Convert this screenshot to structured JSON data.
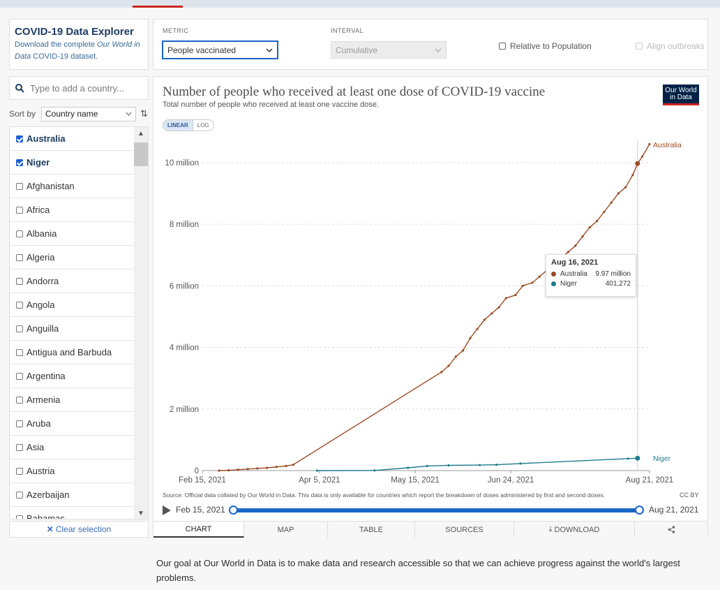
{
  "explorer": {
    "title": "COVID-19 Data Explorer",
    "desc_prefix": "Download the complete ",
    "desc_italic1": "Our World in",
    "desc_italic2": "Data",
    "desc_link": " COVID-19 dataset."
  },
  "search": {
    "placeholder": "Type to add a country..."
  },
  "sort": {
    "label": "Sort by",
    "value": "Country name"
  },
  "countries": [
    {
      "name": "Australia",
      "checked": true
    },
    {
      "name": "Niger",
      "checked": true
    },
    {
      "name": "Afghanistan",
      "checked": false
    },
    {
      "name": "Africa",
      "checked": false
    },
    {
      "name": "Albania",
      "checked": false
    },
    {
      "name": "Algeria",
      "checked": false
    },
    {
      "name": "Andorra",
      "checked": false
    },
    {
      "name": "Angola",
      "checked": false
    },
    {
      "name": "Anguilla",
      "checked": false
    },
    {
      "name": "Antigua and Barbuda",
      "checked": false
    },
    {
      "name": "Argentina",
      "checked": false
    },
    {
      "name": "Armenia",
      "checked": false
    },
    {
      "name": "Aruba",
      "checked": false
    },
    {
      "name": "Asia",
      "checked": false
    },
    {
      "name": "Austria",
      "checked": false
    },
    {
      "name": "Azerbaijan",
      "checked": false
    },
    {
      "name": "Bahamas",
      "checked": false
    }
  ],
  "clear_selection": "Clear selection",
  "controls": {
    "metric_label": "METRIC",
    "metric_value": "People vaccinated",
    "interval_label": "INTERVAL",
    "interval_value": "Cumulative",
    "relative_label": "Relative to Population",
    "align_label": "Align outbreaks"
  },
  "logo": {
    "line1": "Our World",
    "line2": "in Data"
  },
  "scale": {
    "linear": "LINEAR",
    "log": "LOG"
  },
  "tooltip": {
    "date": "Aug 16, 2021",
    "rows": [
      {
        "name": "Australia",
        "value": "9.97 million",
        "color": "#9a4a22"
      },
      {
        "name": "Niger",
        "value": "401,272",
        "color": "#1c7c8c"
      }
    ]
  },
  "source_note": "Source: Official data collated by Our World in Data. This data is only available for countries which report the breakdown of doses administered by first and second doses.",
  "license": "CC BY",
  "timeline": {
    "start": "Feb 15, 2021",
    "end": "Aug 21, 2021"
  },
  "tabs": [
    "CHART",
    "MAP",
    "TABLE",
    "SOURCES",
    "DOWNLOAD"
  ],
  "footer": "Our goal at Our World in Data is to make data and research accessible so that we can achieve progress against the world's largest problems.",
  "chart_data": {
    "type": "line",
    "title": "Number of people who received at least one dose of COVID-19 vaccine",
    "subtitle": "Total number of people who received at least one vaccine dose.",
    "xlabel": "",
    "ylabel": "",
    "x_ticks": [
      "Feb 15, 2021",
      "Apr 5, 2021",
      "May 15, 2021",
      "Jun 24, 2021",
      "Aug 21, 2021"
    ],
    "y_ticks": [
      "0",
      "2 million",
      "4 million",
      "6 million",
      "8 million",
      "10 million"
    ],
    "ylim": [
      0,
      10700000
    ],
    "xlim": [
      "2021-02-15",
      "2021-08-21"
    ],
    "grid": true,
    "series": [
      {
        "name": "Australia",
        "color": "#9a4a22",
        "points": [
          [
            "2021-02-22",
            0
          ],
          [
            "2021-02-26",
            10000
          ],
          [
            "2021-03-02",
            30000
          ],
          [
            "2021-03-06",
            50000
          ],
          [
            "2021-03-10",
            70000
          ],
          [
            "2021-03-14",
            90000
          ],
          [
            "2021-03-18",
            120000
          ],
          [
            "2021-03-22",
            150000
          ],
          [
            "2021-03-25",
            190000
          ],
          [
            "2021-05-26",
            3200000
          ],
          [
            "2021-05-29",
            3400000
          ],
          [
            "2021-06-01",
            3700000
          ],
          [
            "2021-06-04",
            3900000
          ],
          [
            "2021-06-07",
            4300000
          ],
          [
            "2021-06-10",
            4600000
          ],
          [
            "2021-06-13",
            4900000
          ],
          [
            "2021-06-16",
            5100000
          ],
          [
            "2021-06-19",
            5300000
          ],
          [
            "2021-06-22",
            5600000
          ],
          [
            "2021-06-26",
            5700000
          ],
          [
            "2021-06-29",
            6000000
          ],
          [
            "2021-07-03",
            6100000
          ],
          [
            "2021-07-06",
            6300000
          ],
          [
            "2021-07-09",
            6500000
          ],
          [
            "2021-07-12",
            6700000
          ],
          [
            "2021-07-15",
            6900000
          ],
          [
            "2021-07-18",
            7100000
          ],
          [
            "2021-07-21",
            7300000
          ],
          [
            "2021-07-24",
            7600000
          ],
          [
            "2021-07-27",
            7900000
          ],
          [
            "2021-07-30",
            8100000
          ],
          [
            "2021-08-02",
            8400000
          ],
          [
            "2021-08-05",
            8700000
          ],
          [
            "2021-08-08",
            9000000
          ],
          [
            "2021-08-11",
            9200000
          ],
          [
            "2021-08-14",
            9600000
          ],
          [
            "2021-08-16",
            9970000
          ],
          [
            "2021-08-18",
            10200000
          ],
          [
            "2021-08-21",
            10600000
          ]
        ]
      },
      {
        "name": "Niger",
        "color": "#1c7c8c",
        "points": [
          [
            "2021-04-04",
            0
          ],
          [
            "2021-04-28",
            5000
          ],
          [
            "2021-05-12",
            90000
          ],
          [
            "2021-05-20",
            150000
          ],
          [
            "2021-05-29",
            170000
          ],
          [
            "2021-06-11",
            180000
          ],
          [
            "2021-06-18",
            190000
          ],
          [
            "2021-06-28",
            230000
          ],
          [
            "2021-08-12",
            390000
          ],
          [
            "2021-08-16",
            401272
          ]
        ]
      }
    ]
  }
}
